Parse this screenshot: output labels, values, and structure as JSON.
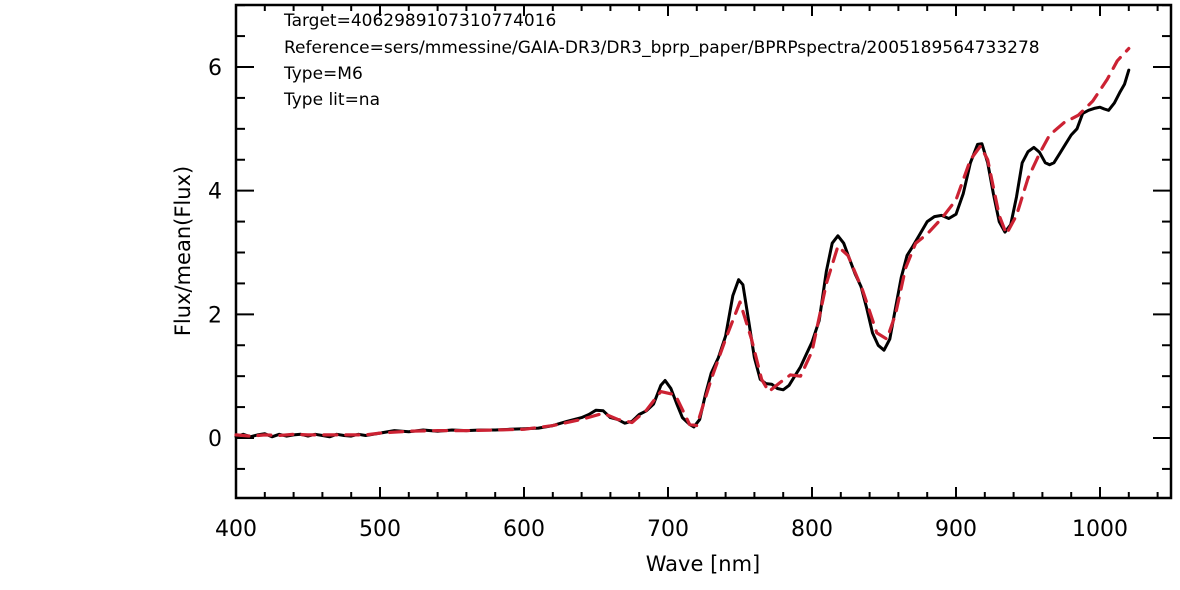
{
  "chart_data": {
    "type": "line",
    "xlabel": "Wave [nm]",
    "ylabel": "Flux/mean(Flux)",
    "xlim": [
      400,
      1050
    ],
    "ylim": [
      -1,
      7
    ],
    "x_ticks": [
      400,
      500,
      600,
      700,
      800,
      900,
      1000
    ],
    "y_ticks": [
      0,
      2,
      4,
      6
    ],
    "grid": false,
    "annotations": [
      "Target=4062989107310774016",
      "Reference=sers/mmessine/GAIA-DR3/DR3_bprp_paper/BPRPspectra/2005189564733278",
      "Type=M6",
      "Type lit=na"
    ],
    "series": [
      {
        "style": "solid",
        "color": "#000000",
        "points": [
          [
            400,
            0.02
          ],
          [
            405,
            0.06
          ],
          [
            410,
            0.02
          ],
          [
            415,
            0.05
          ],
          [
            420,
            0.07
          ],
          [
            425,
            0.02
          ],
          [
            430,
            0.06
          ],
          [
            435,
            0.03
          ],
          [
            440,
            0.05
          ],
          [
            445,
            0.06
          ],
          [
            450,
            0.03
          ],
          [
            455,
            0.06
          ],
          [
            460,
            0.04
          ],
          [
            465,
            0.02
          ],
          [
            470,
            0.06
          ],
          [
            475,
            0.04
          ],
          [
            480,
            0.03
          ],
          [
            485,
            0.06
          ],
          [
            490,
            0.04
          ],
          [
            500,
            0.08
          ],
          [
            510,
            0.12
          ],
          [
            520,
            0.1
          ],
          [
            530,
            0.13
          ],
          [
            540,
            0.11
          ],
          [
            550,
            0.13
          ],
          [
            560,
            0.12
          ],
          [
            570,
            0.13
          ],
          [
            580,
            0.13
          ],
          [
            590,
            0.14
          ],
          [
            600,
            0.15
          ],
          [
            610,
            0.16
          ],
          [
            620,
            0.2
          ],
          [
            630,
            0.27
          ],
          [
            640,
            0.33
          ],
          [
            645,
            0.38
          ],
          [
            650,
            0.45
          ],
          [
            655,
            0.44
          ],
          [
            660,
            0.33
          ],
          [
            665,
            0.3
          ],
          [
            670,
            0.24
          ],
          [
            675,
            0.27
          ],
          [
            680,
            0.38
          ],
          [
            685,
            0.44
          ],
          [
            690,
            0.55
          ],
          [
            695,
            0.85
          ],
          [
            698,
            0.93
          ],
          [
            702,
            0.8
          ],
          [
            706,
            0.56
          ],
          [
            710,
            0.33
          ],
          [
            715,
            0.22
          ],
          [
            718,
            0.18
          ],
          [
            722,
            0.3
          ],
          [
            726,
            0.7
          ],
          [
            730,
            1.05
          ],
          [
            735,
            1.3
          ],
          [
            740,
            1.65
          ],
          [
            745,
            2.3
          ],
          [
            749,
            2.56
          ],
          [
            752,
            2.48
          ],
          [
            756,
            1.9
          ],
          [
            760,
            1.3
          ],
          [
            764,
            0.95
          ],
          [
            768,
            0.88
          ],
          [
            772,
            0.87
          ],
          [
            776,
            0.8
          ],
          [
            780,
            0.78
          ],
          [
            784,
            0.85
          ],
          [
            788,
            1.0
          ],
          [
            792,
            1.15
          ],
          [
            796,
            1.35
          ],
          [
            800,
            1.55
          ],
          [
            805,
            1.9
          ],
          [
            810,
            2.7
          ],
          [
            814,
            3.15
          ],
          [
            818,
            3.27
          ],
          [
            822,
            3.15
          ],
          [
            826,
            2.9
          ],
          [
            830,
            2.65
          ],
          [
            834,
            2.45
          ],
          [
            838,
            2.1
          ],
          [
            842,
            1.7
          ],
          [
            846,
            1.5
          ],
          [
            850,
            1.42
          ],
          [
            854,
            1.6
          ],
          [
            858,
            2.1
          ],
          [
            862,
            2.6
          ],
          [
            866,
            2.95
          ],
          [
            870,
            3.1
          ],
          [
            875,
            3.3
          ],
          [
            880,
            3.5
          ],
          [
            885,
            3.58
          ],
          [
            890,
            3.6
          ],
          [
            895,
            3.55
          ],
          [
            900,
            3.62
          ],
          [
            905,
            3.95
          ],
          [
            910,
            4.45
          ],
          [
            915,
            4.75
          ],
          [
            918,
            4.76
          ],
          [
            922,
            4.45
          ],
          [
            926,
            3.95
          ],
          [
            930,
            3.5
          ],
          [
            934,
            3.33
          ],
          [
            938,
            3.45
          ],
          [
            942,
            3.9
          ],
          [
            946,
            4.45
          ],
          [
            950,
            4.63
          ],
          [
            954,
            4.7
          ],
          [
            958,
            4.62
          ],
          [
            962,
            4.45
          ],
          [
            965,
            4.42
          ],
          [
            968,
            4.45
          ],
          [
            972,
            4.6
          ],
          [
            976,
            4.75
          ],
          [
            980,
            4.9
          ],
          [
            984,
            5.0
          ],
          [
            988,
            5.25
          ],
          [
            992,
            5.3
          ],
          [
            996,
            5.33
          ],
          [
            1000,
            5.35
          ],
          [
            1003,
            5.32
          ],
          [
            1006,
            5.3
          ],
          [
            1010,
            5.42
          ],
          [
            1014,
            5.6
          ],
          [
            1017,
            5.72
          ],
          [
            1020,
            5.95
          ]
        ]
      },
      {
        "style": "dashed",
        "color": "#cc2233",
        "points": [
          [
            400,
            0.05
          ],
          [
            410,
            0.03
          ],
          [
            420,
            0.05
          ],
          [
            430,
            0.04
          ],
          [
            440,
            0.06
          ],
          [
            450,
            0.05
          ],
          [
            460,
            0.05
          ],
          [
            470,
            0.05
          ],
          [
            480,
            0.05
          ],
          [
            490,
            0.05
          ],
          [
            500,
            0.08
          ],
          [
            520,
            0.11
          ],
          [
            540,
            0.12
          ],
          [
            560,
            0.12
          ],
          [
            580,
            0.13
          ],
          [
            600,
            0.14
          ],
          [
            620,
            0.2
          ],
          [
            640,
            0.3
          ],
          [
            655,
            0.4
          ],
          [
            665,
            0.3
          ],
          [
            675,
            0.25
          ],
          [
            685,
            0.45
          ],
          [
            695,
            0.75
          ],
          [
            705,
            0.7
          ],
          [
            715,
            0.22
          ],
          [
            720,
            0.2
          ],
          [
            730,
            0.95
          ],
          [
            740,
            1.6
          ],
          [
            750,
            2.2
          ],
          [
            758,
            1.6
          ],
          [
            765,
            0.95
          ],
          [
            770,
            0.75
          ],
          [
            778,
            0.9
          ],
          [
            785,
            1.02
          ],
          [
            792,
            1.0
          ],
          [
            800,
            1.4
          ],
          [
            810,
            2.5
          ],
          [
            818,
            3.1
          ],
          [
            825,
            2.95
          ],
          [
            835,
            2.4
          ],
          [
            845,
            1.7
          ],
          [
            852,
            1.6
          ],
          [
            858,
            2.0
          ],
          [
            865,
            2.75
          ],
          [
            872,
            3.15
          ],
          [
            880,
            3.3
          ],
          [
            890,
            3.55
          ],
          [
            900,
            3.85
          ],
          [
            910,
            4.5
          ],
          [
            917,
            4.72
          ],
          [
            922,
            4.5
          ],
          [
            930,
            3.6
          ],
          [
            935,
            3.3
          ],
          [
            942,
            3.6
          ],
          [
            950,
            4.2
          ],
          [
            958,
            4.6
          ],
          [
            965,
            4.9
          ],
          [
            975,
            5.1
          ],
          [
            985,
            5.22
          ],
          [
            995,
            5.45
          ],
          [
            1005,
            5.8
          ],
          [
            1012,
            6.1
          ],
          [
            1020,
            6.3
          ]
        ]
      }
    ]
  }
}
